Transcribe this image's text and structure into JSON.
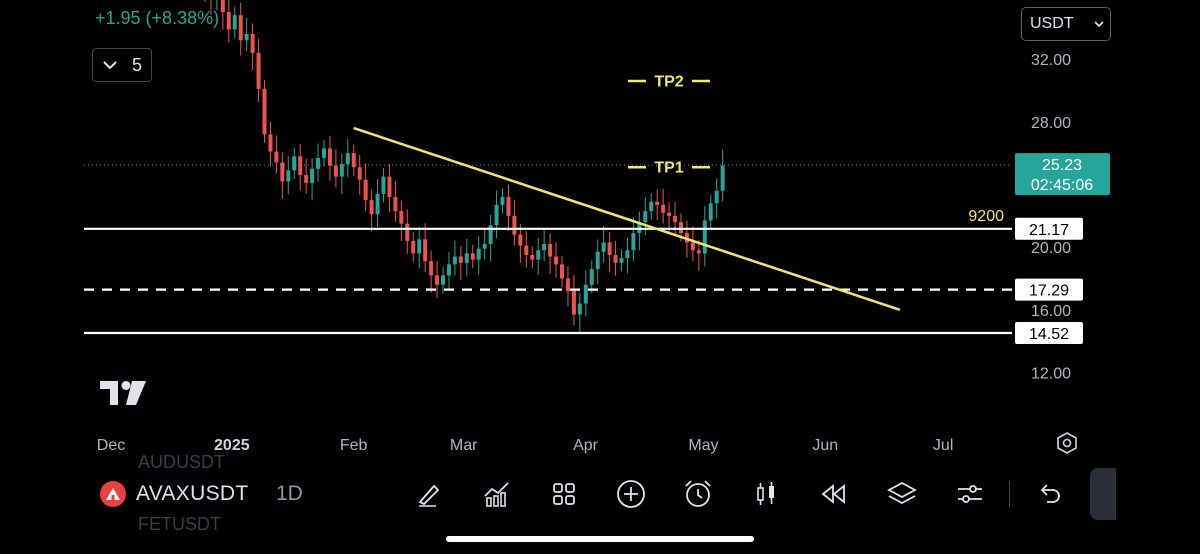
{
  "header": {
    "change_text": "+1.95 (+8.38%)",
    "indicator_count": "5",
    "currency": "USDT"
  },
  "chart_data": {
    "type": "candlestick",
    "symbol": "AVAXUSDT",
    "interval": "1D",
    "last_price": "25.23",
    "countdown": "02:45:06",
    "y_ticks": [
      "32.00",
      "28.00",
      "20.00",
      "16.00",
      "12.00"
    ],
    "x_ticks": [
      "Dec",
      "2025",
      "Feb",
      "Mar",
      "Apr",
      "May",
      "Jun",
      "Jul"
    ],
    "levels": [
      {
        "label": "21.17",
        "value": 21.17,
        "style": "solid"
      },
      {
        "label": "17.29",
        "value": 17.29,
        "style": "dashed"
      },
      {
        "label": "14.52",
        "value": 14.52,
        "style": "solid"
      }
    ],
    "level_annotation": "9200",
    "targets": [
      {
        "label": "TP2",
        "value": 30.6
      },
      {
        "label": "TP1",
        "value": 25.1
      }
    ],
    "trendline": {
      "start": [
        "2025-02-01",
        27.6
      ],
      "end": [
        "2025-06-20",
        16.0
      ]
    },
    "series": [
      {
        "name": "AVAXUSDT",
        "close": [
          36.2,
          35.8,
          36.5,
          35.0,
          33.9,
          34.8,
          33.2,
          33.6,
          32.4,
          30.1,
          27.2,
          26.1,
          25.4,
          24.2,
          24.9,
          25.8,
          24.6,
          24.1,
          25.0,
          25.7,
          26.3,
          25.2,
          24.5,
          25.3,
          26.0,
          25.1,
          24.3,
          23.0,
          22.1,
          23.4,
          24.5,
          23.2,
          22.3,
          21.5,
          20.4,
          19.6,
          20.5,
          19.1,
          18.2,
          17.6,
          18.2,
          18.9,
          19.4,
          19.0,
          19.6,
          19.2,
          19.9,
          20.2,
          21.4,
          22.7,
          23.2,
          22.0,
          20.8,
          20.1,
          19.5,
          19.2,
          19.8,
          20.2,
          19.4,
          18.9,
          18.0,
          17.2,
          15.7,
          16.4,
          17.6,
          18.6,
          19.7,
          20.3,
          19.5,
          19.0,
          19.3,
          19.8,
          20.9,
          21.6,
          22.3,
          22.9,
          22.7,
          22.2,
          22.0,
          21.6,
          20.9,
          20.3,
          19.8,
          19.6,
          21.7,
          22.8,
          23.6,
          25.2
        ]
      }
    ]
  },
  "toolbar": {
    "symbol": "AVAXUSDT",
    "interval": "1D",
    "ghost_top": "AUDUSDT",
    "ghost_bottom": "FETUSDT",
    "tools": [
      "pen-icon",
      "indicators-icon",
      "grid-icon",
      "add-icon",
      "alarm-icon",
      "candles-icon",
      "replay-icon",
      "layers-icon",
      "settings-sliders-icon",
      "undo-icon"
    ]
  },
  "colors": {
    "up": "#26a69a",
    "down": "#ef5350",
    "trendline": "#f2e76b",
    "level": "#ffffff",
    "price_label": "#26a69a"
  }
}
